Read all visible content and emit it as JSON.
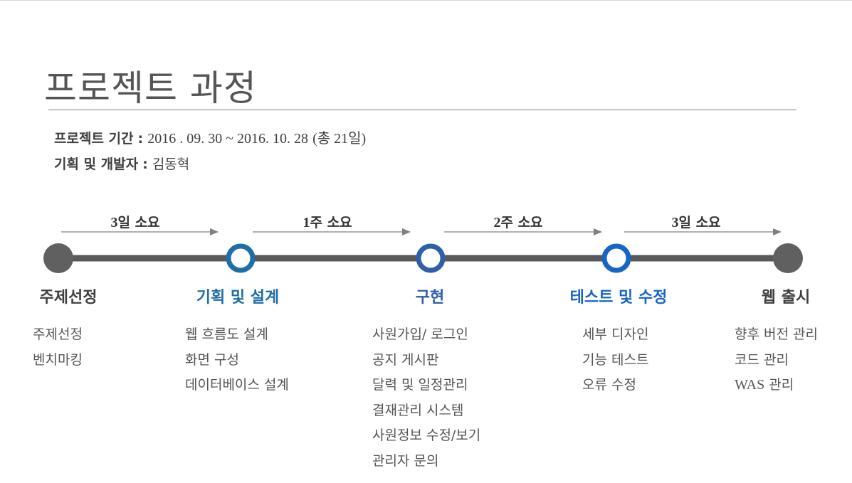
{
  "title": "프로젝트 과정",
  "project_period_label": "프로젝트 기간",
  "project_period_value": "2016 . 09. 30 ~ 2016. 10. 28",
  "project_period_total": "(총 21일)",
  "planner_label": "기획 및 개발자",
  "planner_name": "김동혁",
  "colon": ":",
  "durations": [
    {
      "num": "3",
      "unit": "일 소요"
    },
    {
      "num": "1",
      "unit": "주 소요"
    },
    {
      "num": "2",
      "unit": "주 소요"
    },
    {
      "num": "3",
      "unit": "일 소요"
    }
  ],
  "phases": [
    {
      "title": "주제선정",
      "color": "#404040",
      "node_style": "filled",
      "items": [
        "주제선정",
        "벤치마킹"
      ]
    },
    {
      "title": "기획 및 설계",
      "color": "#1f6ea8",
      "node_style": "ring",
      "items": [
        "웹 흐름도 설계",
        "화면 구성",
        "데이터베이스 설계"
      ]
    },
    {
      "title": "구현",
      "color": "#2e5fa8",
      "node_style": "ring",
      "items": [
        "사원가입/ 로그인",
        "공지 게시판",
        "달력 및 일정관리",
        "결재관리 시스템",
        "사원정보 수정/보기",
        "관리자 문의"
      ]
    },
    {
      "title": "테스트 및 수정",
      "color": "#1766c6",
      "node_style": "ring",
      "items": [
        "세부 디자인",
        "기능 테스트",
        "오류 수정"
      ]
    },
    {
      "title": "웹 출시",
      "color": "#404040",
      "node_style": "filled",
      "items": [
        "향후 버전 관리",
        "코드 관리",
        "WAS 관리"
      ]
    }
  ],
  "colors": {
    "track": "#595959",
    "node_filled": "#606060",
    "arrow": "#7f7f7f",
    "text": "#555555"
  }
}
